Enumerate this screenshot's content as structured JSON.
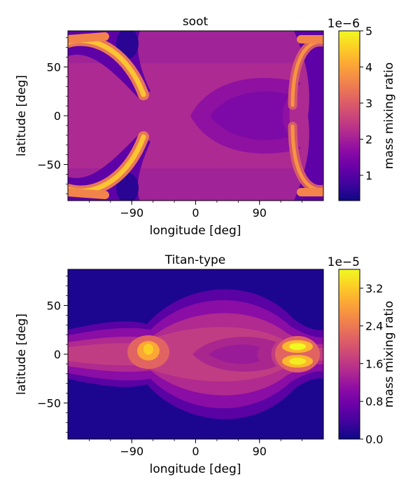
{
  "chart_data": [
    {
      "type": "heatmap",
      "title": "soot",
      "xlabel": "longitude [deg]",
      "ylabel": "latitude [deg]",
      "xlim": [
        -180,
        180
      ],
      "ylim": [
        -87,
        87
      ],
      "xticks": [
        -90,
        0,
        90
      ],
      "xtick_labels": [
        "−90",
        "0",
        "90"
      ],
      "yticks": [
        -50,
        0,
        50
      ],
      "ytick_labels": [
        "−50",
        "0",
        "50"
      ],
      "colormap": "plasma",
      "colorbar": {
        "label": "mass mixing ratio",
        "multiplier": "1e−6",
        "range": [
          0.3,
          5.0
        ],
        "ticks": [
          1,
          2,
          3,
          4,
          5
        ],
        "tick_labels": [
          "1",
          "2",
          "3",
          "4",
          "5"
        ]
      },
      "features": {
        "background_level": 1.6,
        "central_low": {
          "lon": 25,
          "lat": 0,
          "level": 1.35
        },
        "arcs": [
          {
            "region": "west",
            "hemisphere": "north",
            "level": 4.8
          },
          {
            "region": "west",
            "hemisphere": "south",
            "level": 4.9
          },
          {
            "region": "east",
            "hemisphere": "north",
            "level": 4.2
          },
          {
            "region": "east",
            "hemisphere": "south",
            "level": 4.5
          }
        ],
        "polar_bands": {
          "lat": 78,
          "level": 4.0
        }
      }
    },
    {
      "type": "heatmap",
      "title": "Titan-type",
      "xlabel": "longitude [deg]",
      "ylabel": "latitude [deg]",
      "xlim": [
        -180,
        180
      ],
      "ylim": [
        -87,
        87
      ],
      "xticks": [
        -90,
        0,
        90
      ],
      "xtick_labels": [
        "−90",
        "0",
        "90"
      ],
      "yticks": [
        -50,
        0,
        50
      ],
      "ytick_labels": [
        "−50",
        "0",
        "50"
      ],
      "colormap": "plasma",
      "colorbar": {
        "label": "mass mixing ratio",
        "multiplier": "1e−5",
        "range": [
          0.0,
          3.6
        ],
        "ticks": [
          0.0,
          0.8,
          1.6,
          2.4,
          3.2
        ],
        "tick_labels": [
          "0.0",
          "0.8",
          "1.6",
          "2.4",
          "3.2"
        ]
      },
      "features": {
        "background_level": 0.15,
        "equatorial_band_level": 1.6,
        "central_low": {
          "lon": 40,
          "lat": 0,
          "level": 1.3
        },
        "hotspots": [
          {
            "lon": -65,
            "lat": 5,
            "level": 2.9
          },
          {
            "lon": 125,
            "lat": 5,
            "level": 3.4
          },
          {
            "lon": 125,
            "lat": -5,
            "level": 3.3
          }
        ]
      }
    }
  ]
}
